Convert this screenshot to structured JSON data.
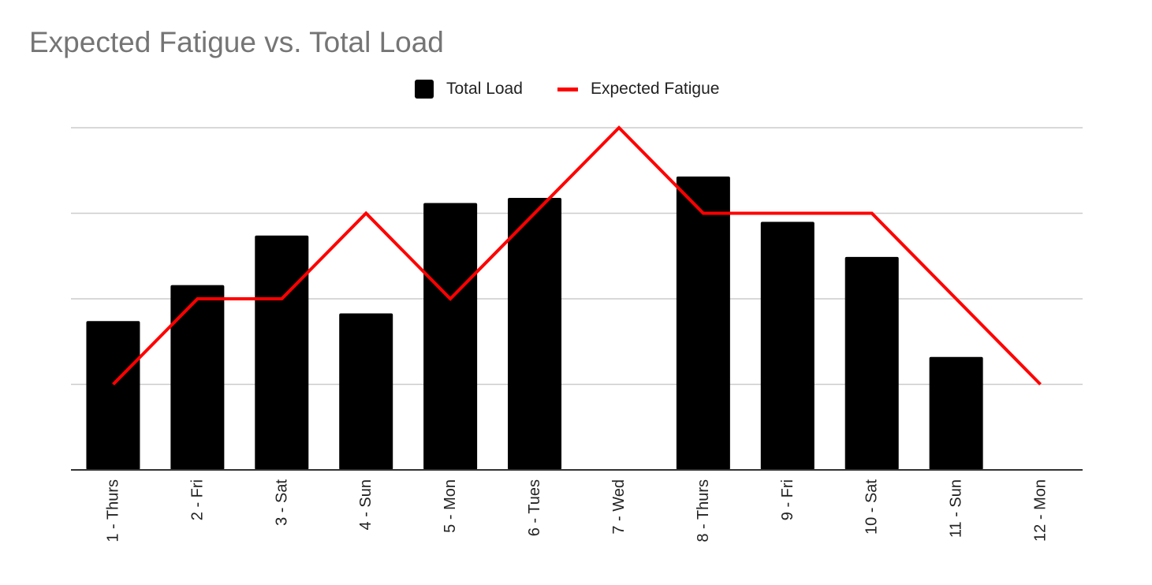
{
  "chart_data": {
    "type": "bar",
    "title": "Expected Fatigue vs. Total Load",
    "xlabel": "",
    "ylabel": "",
    "categories": [
      "1 - Thurs",
      "2 - Fri",
      "3 - Sat",
      "4 - Sun",
      "5 - Mon",
      "6 - Tues",
      "7 - Wed",
      "8 - Thurs",
      "9 - Fri",
      "10 - Sat",
      "11 - Sun",
      "12 - Mon"
    ],
    "series": [
      {
        "name": "Total Load",
        "type": "bar",
        "color": "#000000",
        "values": [
          1.74,
          2.16,
          2.74,
          1.83,
          3.12,
          3.18,
          0,
          3.43,
          2.9,
          2.49,
          1.32,
          0
        ]
      },
      {
        "name": "Expected Fatigue",
        "type": "line",
        "color": "#ff0000",
        "values": [
          1,
          2,
          2,
          3,
          2,
          3,
          4,
          3,
          3,
          3,
          2,
          1
        ]
      }
    ],
    "ylim": [
      0,
      4
    ],
    "grid": true,
    "legend": "top-center"
  }
}
